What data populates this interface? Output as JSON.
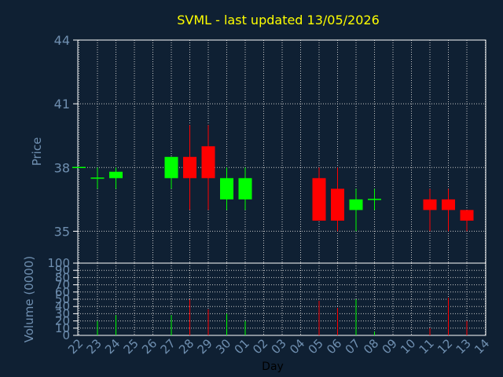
{
  "chart_data": {
    "type": "candlestick",
    "title": "SVML - last updated 13/05/2026",
    "price_ylabel": "Price",
    "volume_ylabel": "Volume (0000)",
    "xlabel": "Day",
    "price_ylim": [
      33.5,
      44
    ],
    "price_yticks": [
      "44",
      "41",
      "38",
      "35"
    ],
    "volume_ylim": [
      0,
      100
    ],
    "volume_yticks": [
      "100",
      "90",
      "80",
      "70",
      "60",
      "50",
      "40",
      "30",
      "20",
      "10",
      "0"
    ],
    "grid": true,
    "colors": {
      "up": "#00ff00",
      "down": "#ff0000",
      "background": "#0f2033",
      "title": "#ffff00",
      "ticks": "#6f8fb0",
      "grid": "#c8c8c8",
      "axis": "#ffffff"
    },
    "days": [
      "22",
      "23",
      "24",
      "25",
      "26",
      "27",
      "28",
      "29",
      "30",
      "01",
      "02",
      "03",
      "04",
      "05",
      "06",
      "07",
      "08",
      "09",
      "10",
      "11",
      "12",
      "13",
      "14"
    ],
    "candles": [
      {
        "day": "22",
        "open": 38.0,
        "high": 38.0,
        "low": 38.0,
        "close": 38.0
      },
      {
        "day": "23",
        "open": 37.5,
        "high": 38.0,
        "low": 37.0,
        "close": 37.5
      },
      {
        "day": "24",
        "open": 37.5,
        "high": 38.0,
        "low": 37.0,
        "close": 37.8
      },
      {
        "day": "27",
        "open": 37.5,
        "high": 38.5,
        "low": 37.0,
        "close": 38.5
      },
      {
        "day": "28",
        "open": 38.5,
        "high": 40.0,
        "low": 36.0,
        "close": 37.5
      },
      {
        "day": "29",
        "open": 39.0,
        "high": 40.0,
        "low": 36.0,
        "close": 37.5
      },
      {
        "day": "30",
        "open": 36.5,
        "high": 38.0,
        "low": 36.0,
        "close": 37.5
      },
      {
        "day": "01",
        "open": 36.5,
        "high": 38.0,
        "low": 36.0,
        "close": 37.5
      },
      {
        "day": "05",
        "open": 37.5,
        "high": 38.0,
        "low": 35.5,
        "close": 35.5
      },
      {
        "day": "06",
        "open": 37.0,
        "high": 38.0,
        "low": 35.0,
        "close": 35.5
      },
      {
        "day": "07",
        "open": 36.0,
        "high": 37.0,
        "low": 35.0,
        "close": 36.5
      },
      {
        "day": "08",
        "open": 36.5,
        "high": 37.0,
        "low": 36.0,
        "close": 36.5
      },
      {
        "day": "11",
        "open": 36.5,
        "high": 37.0,
        "low": 35.0,
        "close": 36.0
      },
      {
        "day": "12",
        "open": 36.5,
        "high": 37.0,
        "low": 35.0,
        "close": 36.0
      },
      {
        "day": "13",
        "open": 36.0,
        "high": 36.0,
        "low": 35.0,
        "close": 35.5
      }
    ],
    "volume": [
      {
        "day": "22",
        "value": 0,
        "dir": "up"
      },
      {
        "day": "23",
        "value": 20,
        "dir": "up"
      },
      {
        "day": "24",
        "value": 28,
        "dir": "up"
      },
      {
        "day": "27",
        "value": 28,
        "dir": "up"
      },
      {
        "day": "28",
        "value": 50,
        "dir": "down"
      },
      {
        "day": "29",
        "value": 36,
        "dir": "down"
      },
      {
        "day": "30",
        "value": 30,
        "dir": "up"
      },
      {
        "day": "01",
        "value": 20,
        "dir": "up"
      },
      {
        "day": "05",
        "value": 48,
        "dir": "down"
      },
      {
        "day": "06",
        "value": 38,
        "dir": "down"
      },
      {
        "day": "07",
        "value": 50,
        "dir": "up"
      },
      {
        "day": "08",
        "value": 5,
        "dir": "up"
      },
      {
        "day": "11",
        "value": 10,
        "dir": "down"
      },
      {
        "day": "12",
        "value": 52,
        "dir": "down"
      },
      {
        "day": "13",
        "value": 20,
        "dir": "down"
      }
    ]
  }
}
